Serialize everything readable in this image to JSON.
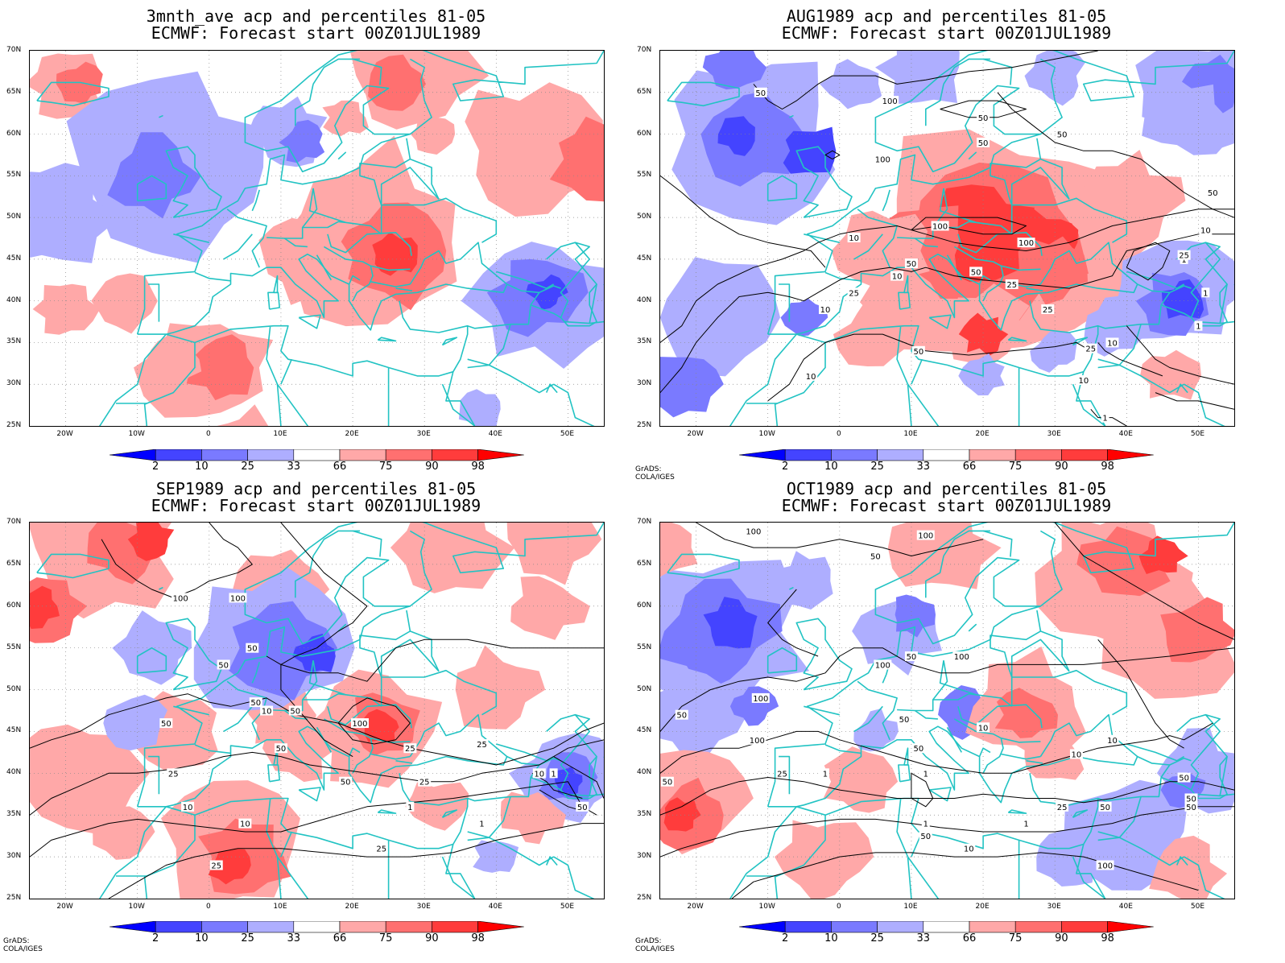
{
  "panels": [
    {
      "title1": "3mnth_ave acp and percentiles 81-05",
      "title2": "ECMWF: Forecast start 00Z01JUL1989",
      "credit": ""
    },
    {
      "title1": "AUG1989 acp and percentiles 81-05",
      "title2": "ECMWF: Forecast start 00Z01JUL1989",
      "credit": "GrADS: COLA/IGES"
    },
    {
      "title1": "SEP1989 acp and percentiles 81-05",
      "title2": "ECMWF: Forecast start 00Z01JUL1989",
      "credit": "GrADS: COLA/IGES"
    },
    {
      "title1": "OCT1989 acp and percentiles 81-05",
      "title2": "ECMWF: Forecast start 00Z01JUL1989",
      "credit": "GrADS: COLA/IGES"
    }
  ],
  "lat_labels": [
    "70N",
    "65N",
    "60N",
    "55N",
    "50N",
    "45N",
    "40N",
    "35N",
    "30N",
    "25N"
  ],
  "lon_labels": [
    "20W",
    "10W",
    "0",
    "10E",
    "20E",
    "30E",
    "40E",
    "50E"
  ],
  "colorbar": {
    "labels": [
      "2",
      "10",
      "25",
      "33",
      "66",
      "75",
      "90",
      "98"
    ],
    "colors": [
      "#0000ff",
      "#4444ff",
      "#7a7aff",
      "#aeaeff",
      "#ffffff",
      "#ffa8a8",
      "#ff7070",
      "#ff3c3c",
      "#ff0000"
    ]
  },
  "colors": {
    "coast": "#22c3c3",
    "contour": "#000000",
    "frame": "#000000"
  },
  "contour_labels": {
    "aug": [
      "50",
      "100",
      "50",
      "100",
      "50",
      "50",
      "100",
      "100",
      "10",
      "50",
      "50",
      "25",
      "25",
      "10",
      "10",
      "25",
      "10",
      "50",
      "25",
      "10",
      "1",
      "10",
      "1",
      "1",
      "1",
      "50",
      "25",
      "10"
    ],
    "sep": [
      "100",
      "100",
      "50",
      "50",
      "50",
      "50",
      "100",
      "50",
      "25",
      "50",
      "50",
      "25",
      "25",
      "25",
      "10",
      "10",
      "1",
      "1",
      "25",
      "25",
      "10",
      "10",
      "1",
      "50"
    ],
    "oct": [
      "100",
      "100",
      "50",
      "50",
      "100",
      "100",
      "50",
      "100",
      "50",
      "10",
      "100",
      "50",
      "10",
      "10",
      "1",
      "1",
      "50",
      "50",
      "50",
      "25",
      "1",
      "1",
      "50",
      "50",
      "10",
      "100",
      "50",
      "25"
    ]
  }
}
